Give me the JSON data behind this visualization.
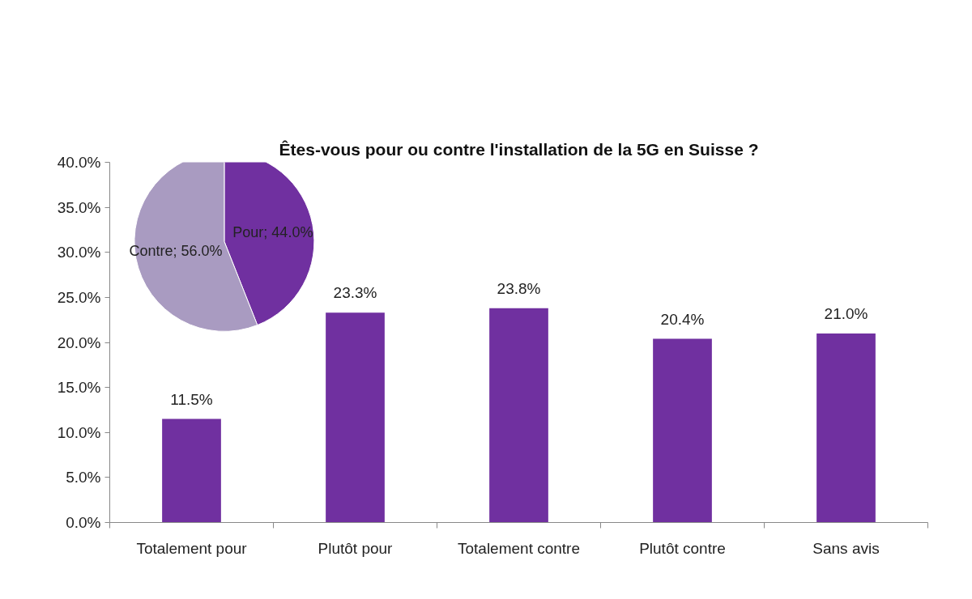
{
  "chart_data": [
    {
      "type": "bar",
      "title": "Êtes-vous pour ou contre l'installation de la 5G en Suisse ?",
      "categories": [
        "Totalement pour",
        "Plutôt pour",
        "Totalement contre",
        "Plutôt contre",
        "Sans avis"
      ],
      "values": [
        11.5,
        23.3,
        23.8,
        20.4,
        21.0
      ],
      "value_labels": [
        "11.5%",
        "23.3%",
        "23.8%",
        "20.4%",
        "21.0%"
      ],
      "color": "#7030a0",
      "ylim": [
        0,
        40
      ],
      "yticks": [
        {
          "value": 0,
          "label": "0.0%"
        },
        {
          "value": 5,
          "label": "5.0%"
        },
        {
          "value": 10,
          "label": "10.0%"
        },
        {
          "value": 15,
          "label": "15.0%"
        },
        {
          "value": 20,
          "label": "20.0%"
        },
        {
          "value": 25,
          "label": "25.0%"
        },
        {
          "value": 30,
          "label": "30.0%"
        },
        {
          "value": 35,
          "label": "35.0%"
        },
        {
          "value": 40,
          "label": "40.0%"
        }
      ],
      "grid": false
    },
    {
      "type": "pie",
      "categories": [
        "Pour",
        "Contre"
      ],
      "values": [
        44.0,
        56.0
      ],
      "value_labels": [
        "44.0%",
        "56.0%"
      ],
      "colors": [
        "#7030a0",
        "#a99bc1"
      ]
    }
  ]
}
